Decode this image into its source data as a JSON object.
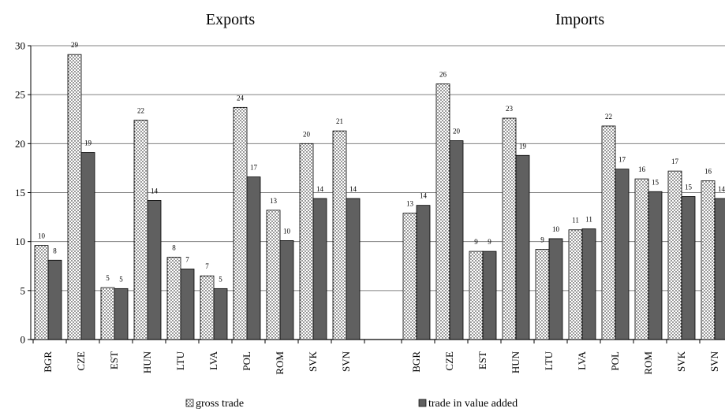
{
  "chart_data": {
    "type": "bar",
    "ylim": [
      0,
      30
    ],
    "yticks": [
      0,
      5,
      10,
      15,
      20,
      25,
      30
    ],
    "grid": true,
    "legend_position": "bottom",
    "legend": [
      "gross trade",
      "trade in value added"
    ],
    "colors": {
      "gross_trade_fill": "#ffffff",
      "value_added_fill": "#606060",
      "grid": "#808080"
    },
    "panels": [
      {
        "title": "Exports",
        "categories": [
          "BGR",
          "CZE",
          "EST",
          "HUN",
          "LTU",
          "LVA",
          "POL",
          "ROM",
          "SVK",
          "SVN"
        ],
        "series": [
          {
            "name": "gross trade",
            "values": [
              9.6,
              29.1,
              5.3,
              22.4,
              8.4,
              6.5,
              23.7,
              13.2,
              20.0,
              21.3
            ],
            "labels": [
              "10",
              "29",
              "5",
              "22",
              "8",
              "7",
              "24",
              "13",
              "20",
              "21"
            ]
          },
          {
            "name": "trade in value added",
            "values": [
              8.1,
              19.1,
              5.2,
              14.2,
              7.2,
              5.2,
              16.6,
              10.1,
              14.4,
              14.4
            ],
            "labels": [
              "8",
              "19",
              "5",
              "14",
              "7",
              "5",
              "17",
              "10",
              "14",
              "14"
            ]
          }
        ]
      },
      {
        "title": "Imports",
        "categories": [
          "BGR",
          "CZE",
          "EST",
          "HUN",
          "LTU",
          "LVA",
          "POL",
          "ROM",
          "SVK",
          "SVN"
        ],
        "series": [
          {
            "name": "gross trade",
            "values": [
              12.9,
              26.1,
              9.0,
              22.6,
              9.2,
              11.2,
              21.8,
              16.4,
              17.2,
              16.2
            ],
            "labels": [
              "13",
              "26",
              "9",
              "23",
              "9",
              "11",
              "22",
              "16",
              "17",
              "16"
            ]
          },
          {
            "name": "trade in value added",
            "values": [
              13.7,
              20.3,
              9.0,
              18.8,
              10.3,
              11.3,
              17.4,
              15.1,
              14.6,
              14.4
            ],
            "labels": [
              "14",
              "20",
              "9",
              "19",
              "10",
              "11",
              "17",
              "15",
              "15",
              "14"
            ]
          }
        ]
      }
    ]
  }
}
